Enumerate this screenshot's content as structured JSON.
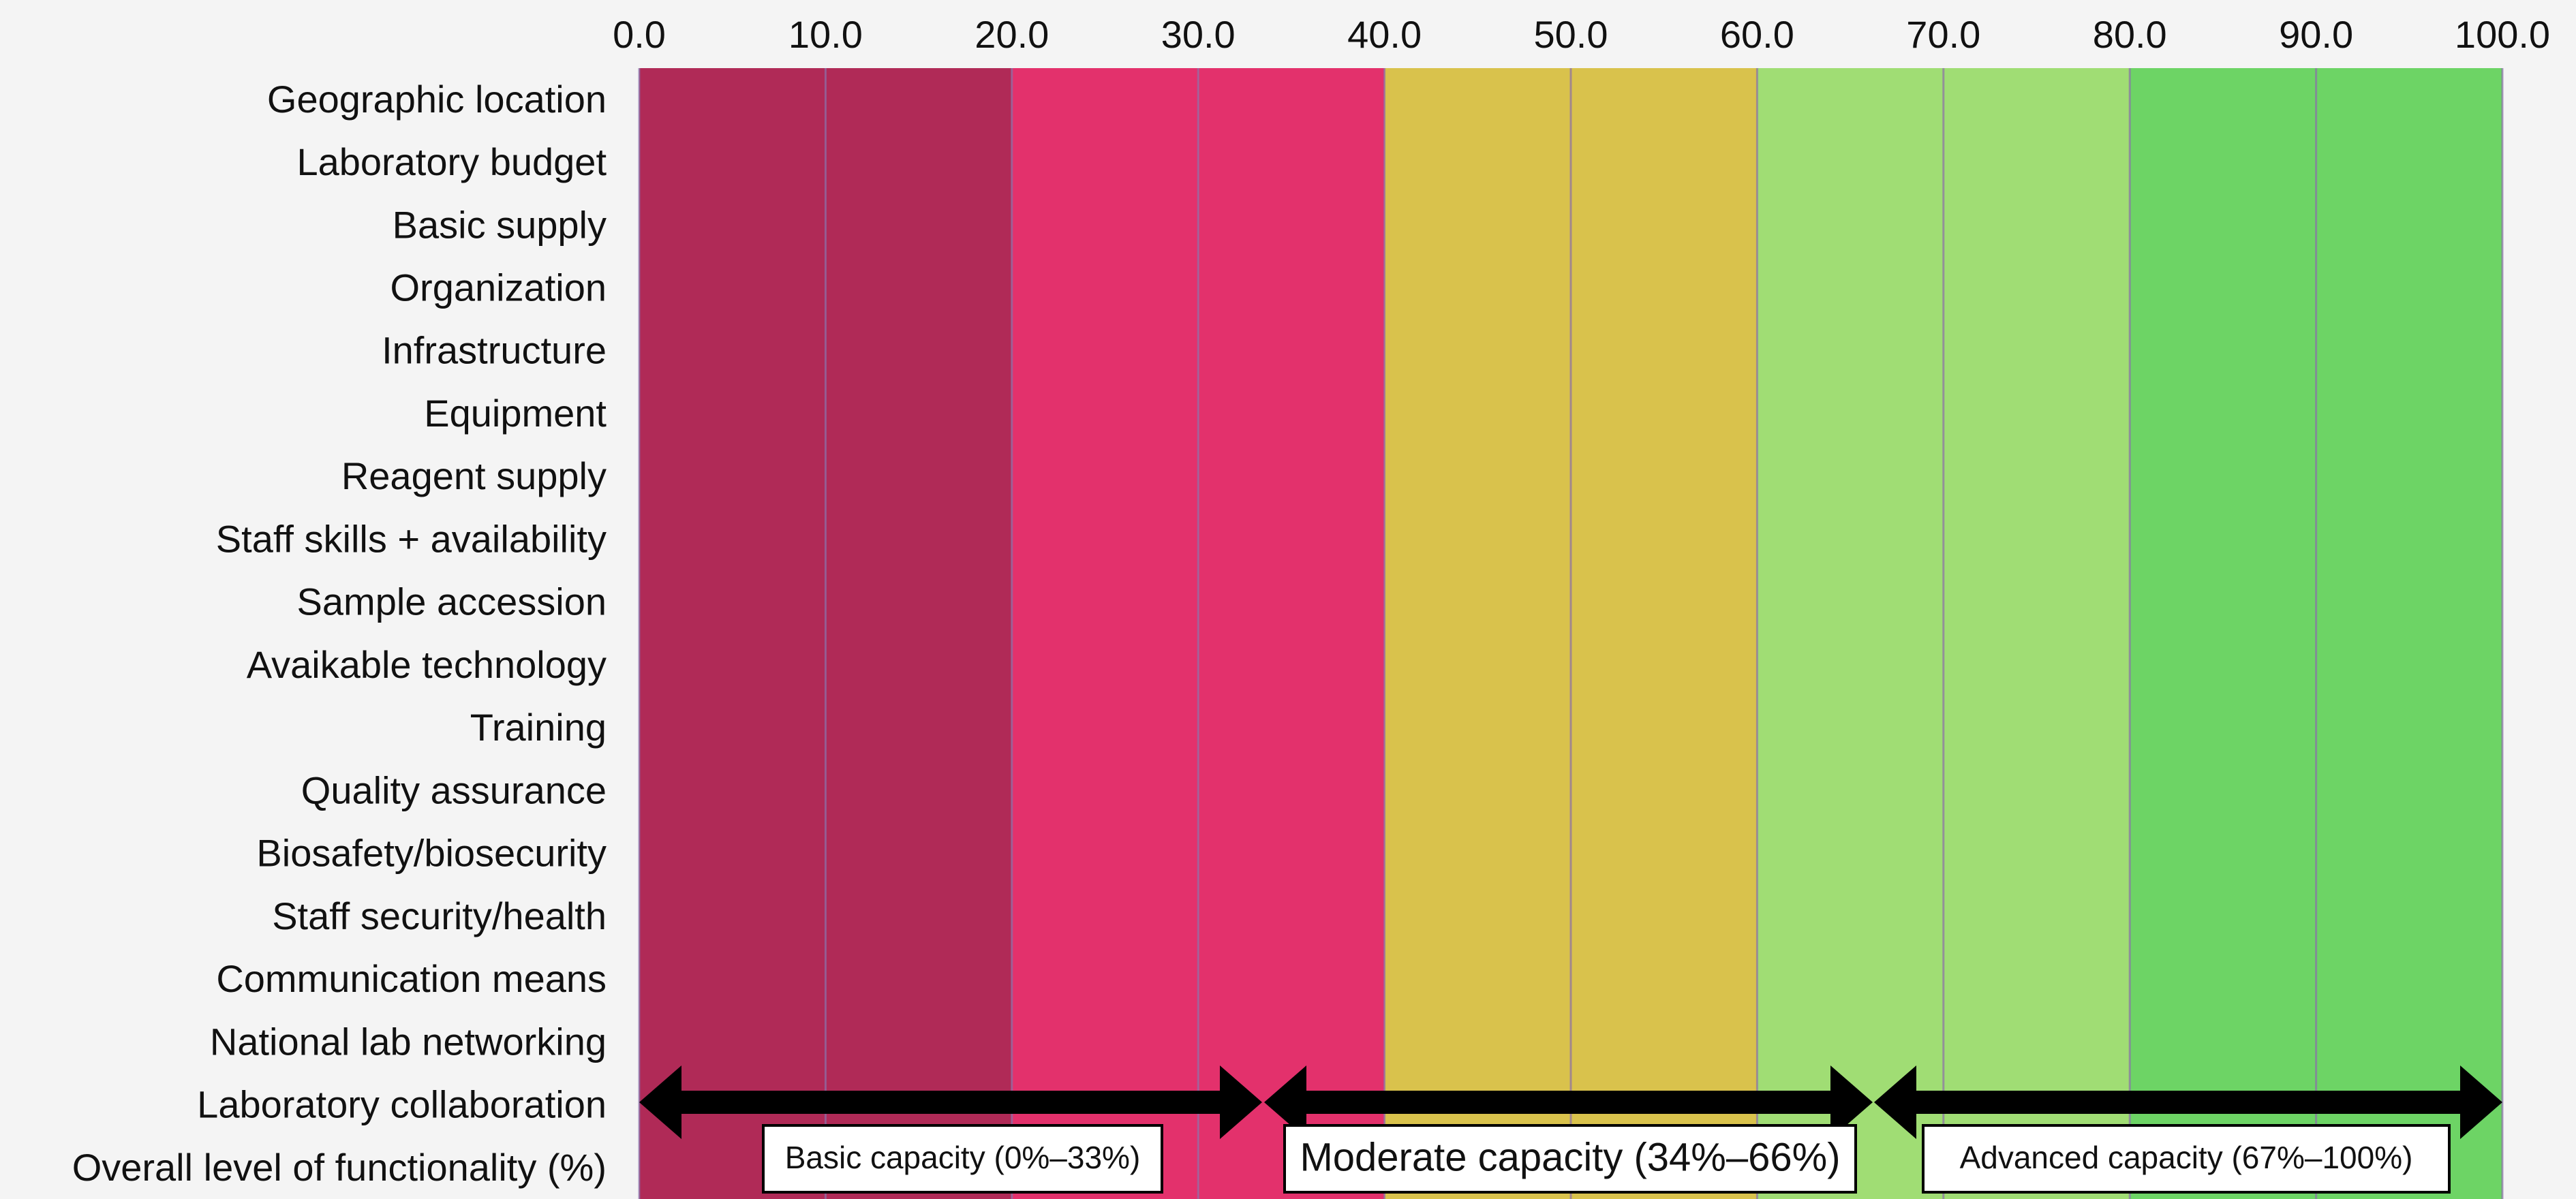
{
  "chart_data": {
    "type": "bar",
    "orientation": "horizontal",
    "xlim": [
      0,
      100
    ],
    "x_ticks": [
      "0.0",
      "10.0",
      "20.0",
      "30.0",
      "40.0",
      "50.0",
      "60.0",
      "70.0",
      "80.0",
      "90.0",
      "100.0"
    ],
    "tick_position": "top",
    "categories": [
      "Geographic location",
      "Laboratory budget",
      "Basic supply",
      "Organization",
      "Infrastructure",
      "Equipment",
      "Reagent supply",
      "Staff skills + availability",
      "Sample accession",
      "Avaikable technology",
      "Training",
      "Quality assurance",
      "Biosafety/biosecurity",
      "Staff security/health",
      "Communication means",
      "National lab networking",
      "Laboratory collaboration",
      "Overall level of functionality (%)"
    ],
    "background_bands": [
      {
        "from": 0,
        "to": 10,
        "color": "#b02a57"
      },
      {
        "from": 10,
        "to": 20,
        "color": "#b02a57"
      },
      {
        "from": 20,
        "to": 30,
        "color": "#e3316c"
      },
      {
        "from": 30,
        "to": 40,
        "color": "#e3316c"
      },
      {
        "from": 40,
        "to": 50,
        "color": "#d9c24c"
      },
      {
        "from": 50,
        "to": 60,
        "color": "#d9c24c"
      },
      {
        "from": 60,
        "to": 70,
        "color": "#a0dd74"
      },
      {
        "from": 70,
        "to": 80,
        "color": "#a0dd74"
      },
      {
        "from": 80,
        "to": 90,
        "color": "#6dd465"
      },
      {
        "from": 90,
        "to": 100,
        "color": "#6dd465"
      }
    ],
    "capacity_ranges": [
      {
        "label": "Basic capacity (0%–33%)",
        "from": 0,
        "to": 33
      },
      {
        "label": "Moderate capacity (34%–66%)",
        "from": 34,
        "to": 66
      },
      {
        "label": "Advanced capacity (67%–100%)",
        "from": 67,
        "to": 100
      }
    ],
    "colors": {
      "background": "#f4f4f4",
      "gridline": "#8a6fa8",
      "arrow": "#000000",
      "text": "#111111"
    },
    "grid": true,
    "legend": "none"
  }
}
